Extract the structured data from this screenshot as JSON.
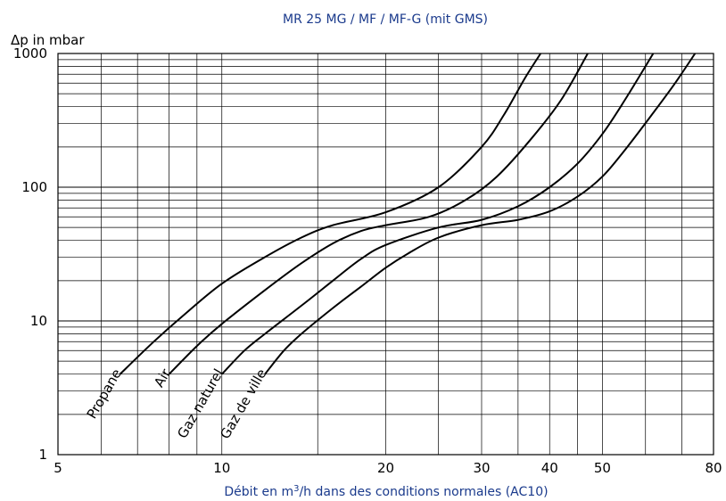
{
  "chart_data": {
    "type": "line",
    "title": "MR 25 MG / MF / MF-G (mit GMS)",
    "xlabel": "Débit en m3/h dans des conditions normales (AC10)",
    "xlabel_parts": {
      "before": "Débit en m",
      "superscript": "3",
      "after": "/h dans des conditions normales (AC10)"
    },
    "ylabel": "Δp in mbar",
    "xscale": "log",
    "yscale": "log",
    "xlim": [
      5,
      80
    ],
    "ylim": [
      1,
      1000
    ],
    "x_ticks": [
      {
        "value": 5,
        "label": "5"
      },
      {
        "value": 10,
        "label": "10"
      },
      {
        "value": 20,
        "label": "20"
      },
      {
        "value": 30,
        "label": "30"
      },
      {
        "value": 40,
        "label": "40"
      },
      {
        "value": 50,
        "label": "50"
      },
      {
        "value": 80,
        "label": "80"
      }
    ],
    "y_ticks": [
      {
        "value": 1,
        "label": "1"
      },
      {
        "value": 10,
        "label": "10"
      },
      {
        "value": 100,
        "label": "100"
      },
      {
        "value": 1000,
        "label": "1000"
      }
    ],
    "grid": true,
    "series": [
      {
        "name": "Propane",
        "x": [
          6.5,
          7.5,
          8.5,
          10,
          12,
          14,
          16,
          20,
          25,
          30,
          33,
          36,
          38.5
        ],
        "y": [
          4,
          7,
          11,
          19,
          30,
          42,
          52,
          65,
          100,
          200,
          350,
          650,
          1000
        ]
      },
      {
        "name": "Air",
        "x": [
          8,
          9,
          10,
          12,
          14,
          16,
          18,
          20,
          24,
          28,
          32,
          37,
          42,
          47
        ],
        "y": [
          4,
          6.5,
          9.5,
          17,
          27,
          38,
          47,
          52,
          60,
          80,
          120,
          230,
          450,
          1000
        ]
      },
      {
        "name": "Gaz naturel",
        "x": [
          10,
          11,
          12,
          14,
          16,
          18,
          20,
          25,
          30,
          35,
          40,
          45,
          50,
          55,
          62
        ],
        "y": [
          4,
          6,
          8,
          13,
          20,
          29,
          37,
          50,
          57,
          72,
          100,
          150,
          250,
          450,
          1000
        ]
      },
      {
        "name": "Gaz de ville",
        "x": [
          12,
          13,
          14,
          16,
          18,
          20,
          22,
          25,
          30,
          35,
          40,
          45,
          50,
          55,
          62,
          68,
          74
        ],
        "y": [
          4,
          6,
          8,
          12.5,
          18,
          25,
          32,
          42,
          52,
          57,
          66,
          85,
          120,
          190,
          360,
          600,
          1000
        ]
      }
    ]
  }
}
